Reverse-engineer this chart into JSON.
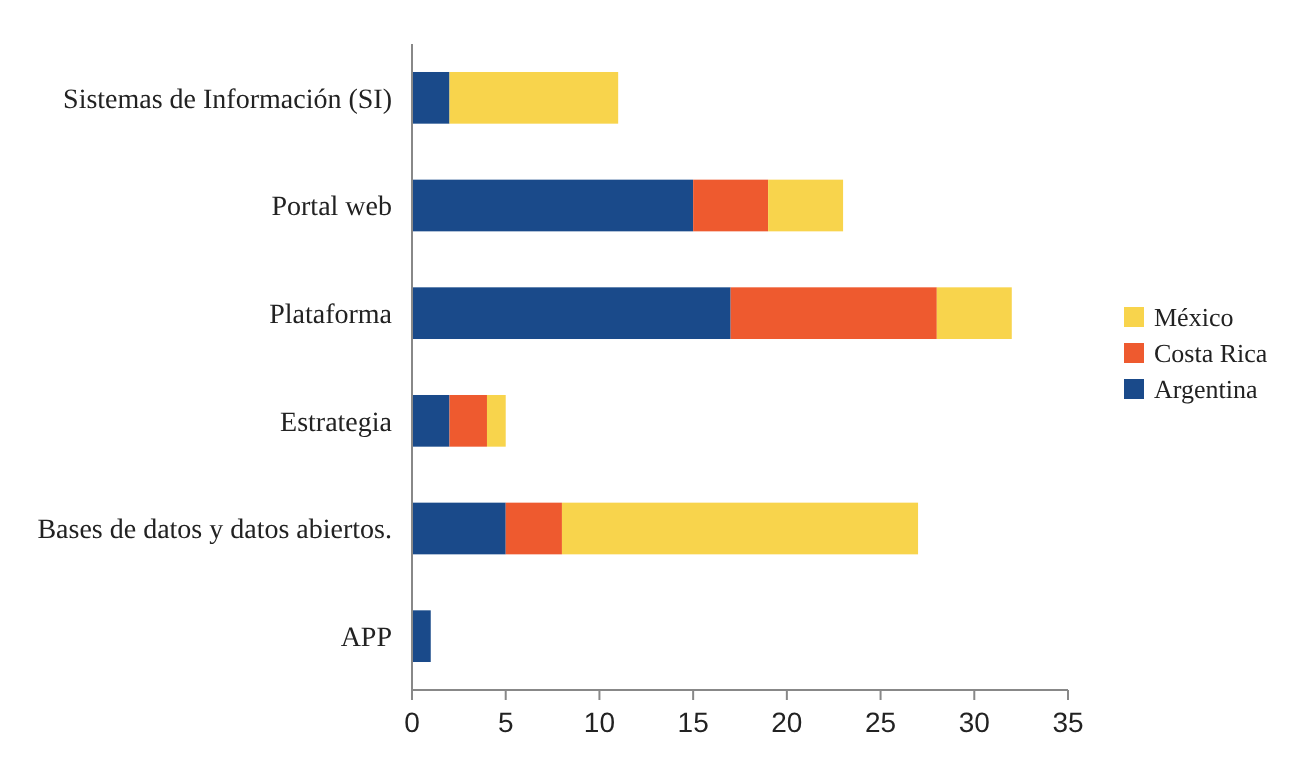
{
  "chart_data": {
    "type": "bar",
    "orientation": "horizontal",
    "stacked": true,
    "categories": [
      "Sistemas de Información (SI)",
      "Portal web",
      "Plataforma",
      "Estrategia",
      "Bases de datos y datos abiertos.",
      "APP"
    ],
    "series": [
      {
        "name": "Argentina",
        "color": "#1a4a8a",
        "values": [
          2,
          15,
          17,
          2,
          5,
          1
        ]
      },
      {
        "name": "Costa Rica",
        "color": "#ee5a2f",
        "values": [
          0,
          4,
          11,
          2,
          3,
          0
        ]
      },
      {
        "name": "México",
        "color": "#f8d44c",
        "values": [
          9,
          4,
          4,
          1,
          19,
          0
        ]
      }
    ],
    "xlim": [
      0,
      35
    ],
    "xticks": [
      0,
      5,
      10,
      15,
      20,
      25,
      30,
      35
    ],
    "grid": false,
    "legend": "right"
  }
}
